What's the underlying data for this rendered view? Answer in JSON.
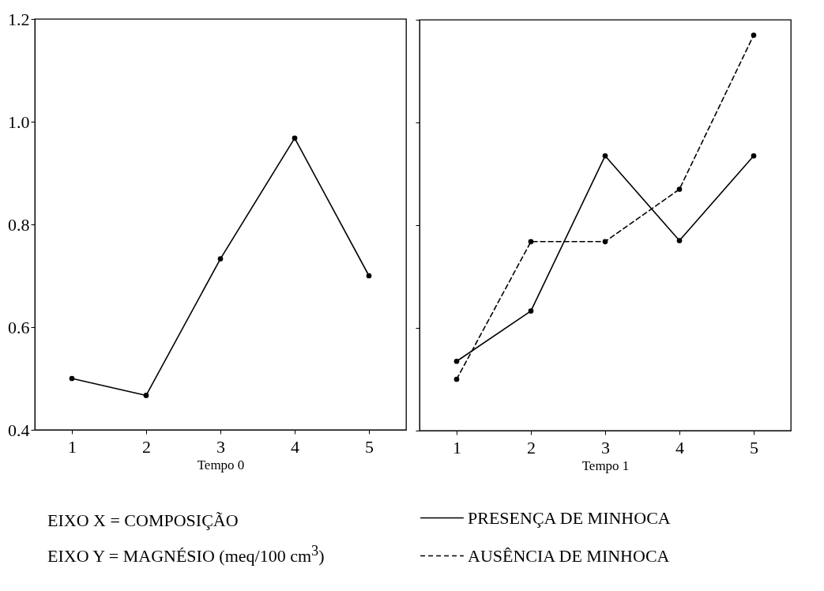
{
  "chart_data": [
    {
      "type": "line",
      "xlabel": "Tempo 0",
      "x": [
        1,
        2,
        3,
        4,
        5
      ],
      "xlim": [
        0.5,
        5.5
      ],
      "xticks": [
        1,
        2,
        3,
        4,
        5
      ],
      "ylim": [
        0.4,
        1.2
      ],
      "yticks": [
        0.4,
        0.6,
        0.8,
        {
          "value": 1,
          "label": "1.0"
        },
        1.2
      ],
      "marker": "circle",
      "series": [
        {
          "color": "#000000",
          "line_style": "solid",
          "values": [
            0.5,
            0.467,
            0.733,
            0.968,
            0.7
          ]
        }
      ]
    },
    {
      "type": "line",
      "xlabel": "Tempo 1",
      "x": [
        1,
        2,
        3,
        4,
        5
      ],
      "xlim": [
        0.5,
        5.5
      ],
      "xticks": [
        1,
        2,
        3,
        4,
        5
      ],
      "ylim": [
        0.4,
        1.2
      ],
      "yticks": [
        0.4,
        0.6,
        0.8,
        1,
        1.2
      ],
      "tick_labels": "x",
      "marker": "circle",
      "legend": "bottom",
      "annotations": [
        "EIXO X = COMPOSIÇÃO",
        "EIXO Y = MAGNÉSIO (meq/100 cm$^{3}$)"
      ],
      "series": [
        {
          "name": "PRESENÇA DE MINHOCA",
          "color": "#000000",
          "line_style": "solid",
          "values": [
            0.535,
            0.633,
            0.935,
            0.77,
            0.935
          ]
        },
        {
          "name": "AUSÊNCIA DE MINHOCA",
          "color": "#000000",
          "line_style": "dashed",
          "values": [
            0.5,
            0.768,
            0.768,
            0.87,
            1.17
          ]
        }
      ]
    }
  ]
}
